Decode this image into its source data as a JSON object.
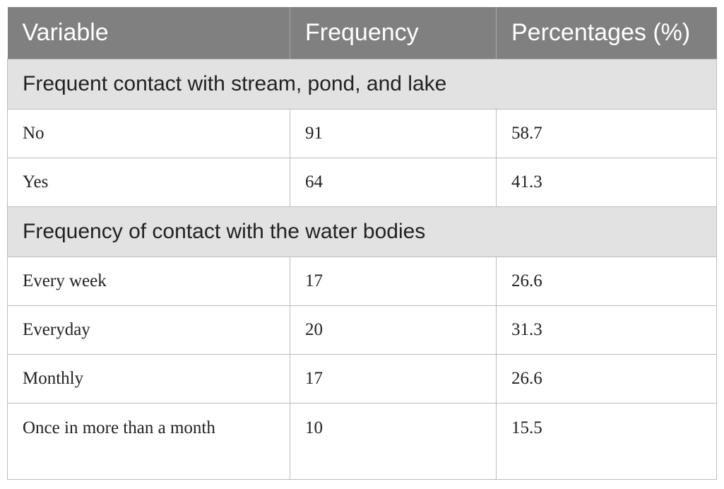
{
  "table": {
    "headers": [
      "Variable",
      "Frequency",
      "Percentages (%)"
    ],
    "sections": [
      {
        "title": "Frequent contact with stream, pond, and lake",
        "rows": [
          [
            "No",
            "91",
            "58.7"
          ],
          [
            "Yes",
            "64",
            "41.3"
          ]
        ]
      },
      {
        "title": "Frequency of contact with the water bodies",
        "rows": [
          [
            "Every week",
            "17",
            "26.6"
          ],
          [
            "Everyday",
            "20",
            "31.3"
          ],
          [
            "Monthly",
            "17",
            "26.6"
          ],
          [
            "Once in more than a month",
            "10",
            "15.5"
          ]
        ]
      }
    ]
  }
}
